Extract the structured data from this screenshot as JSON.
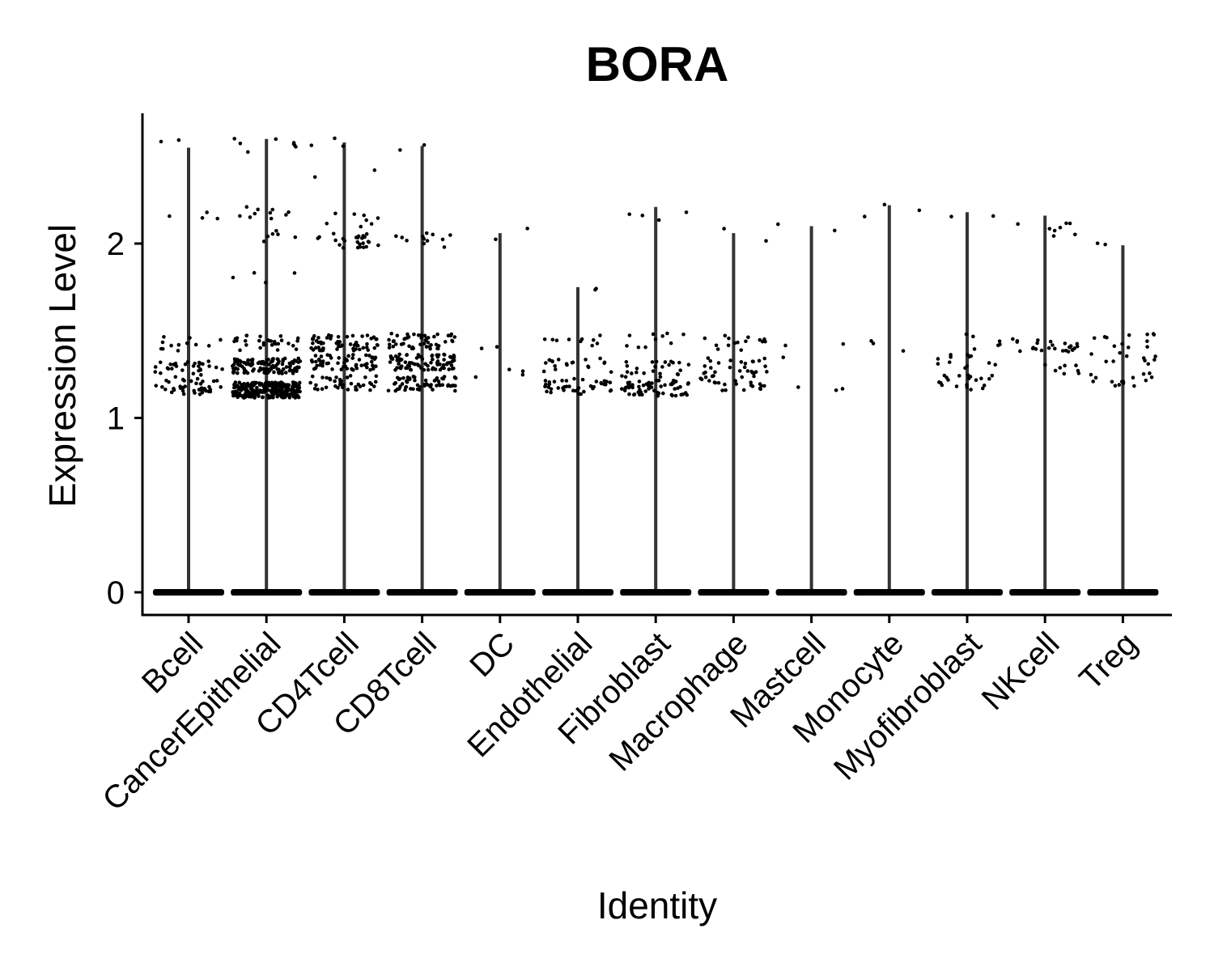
{
  "chart_data": {
    "type": "violin",
    "title": "BORA",
    "xlabel": "Identity",
    "ylabel": "Expression Level",
    "ylim": [
      -0.13,
      2.7
    ],
    "yticks": [
      0,
      1,
      2
    ],
    "categories": [
      "Bcell",
      "CancerEpithelial",
      "CD4Tcell",
      "CD8Tcell",
      "DC",
      "Endothelial",
      "Fibroblast",
      "Macrophage",
      "Mastcell",
      "Monocyte",
      "Myofibroblast",
      "NKcell",
      "Treg"
    ],
    "max_values": [
      2.55,
      2.6,
      2.58,
      2.56,
      2.06,
      1.75,
      2.21,
      2.06,
      2.1,
      2.22,
      2.18,
      2.16,
      1.99
    ],
    "point_groups": [
      {
        "category": "Bcell",
        "points": [
          [
            1.18,
            40
          ],
          [
            1.28,
            30
          ],
          [
            1.43,
            12
          ],
          [
            2.16,
            4
          ],
          [
            2.55,
            2
          ]
        ]
      },
      {
        "category": "CancerEpithelial",
        "points": [
          [
            1.16,
            250
          ],
          [
            1.3,
            120
          ],
          [
            1.43,
            30
          ],
          [
            1.8,
            4
          ],
          [
            2.05,
            6
          ],
          [
            2.17,
            10
          ],
          [
            2.57,
            8
          ]
        ]
      },
      {
        "category": "CD4Tcell",
        "points": [
          [
            1.2,
            40
          ],
          [
            1.32,
            60
          ],
          [
            1.43,
            60
          ],
          [
            2.02,
            25
          ],
          [
            2.14,
            8
          ],
          [
            2.4,
            2
          ],
          [
            2.58,
            3
          ]
        ]
      },
      {
        "category": "CD8Tcell",
        "points": [
          [
            1.2,
            60
          ],
          [
            1.32,
            80
          ],
          [
            1.44,
            50
          ],
          [
            2.02,
            12
          ],
          [
            2.56,
            2
          ]
        ]
      },
      {
        "category": "DC",
        "points": [
          [
            1.25,
            4
          ],
          [
            1.4,
            2
          ],
          [
            2.06,
            2
          ]
        ]
      },
      {
        "category": "Endothelial",
        "points": [
          [
            1.18,
            40
          ],
          [
            1.3,
            20
          ],
          [
            1.44,
            10
          ],
          [
            1.75,
            2
          ]
        ]
      },
      {
        "category": "Fibroblast",
        "points": [
          [
            1.17,
            60
          ],
          [
            1.28,
            25
          ],
          [
            1.44,
            10
          ],
          [
            2.15,
            4
          ]
        ]
      },
      {
        "category": "Macrophage",
        "points": [
          [
            1.2,
            25
          ],
          [
            1.3,
            25
          ],
          [
            1.43,
            15
          ],
          [
            2.06,
            2
          ]
        ]
      },
      {
        "category": "Mastcell",
        "points": [
          [
            1.2,
            3
          ],
          [
            1.38,
            3
          ],
          [
            2.09,
            2
          ]
        ]
      },
      {
        "category": "Monocyte",
        "points": [
          [
            1.4,
            3
          ],
          [
            2.19,
            3
          ]
        ]
      },
      {
        "category": "Myofibroblast",
        "points": [
          [
            1.2,
            20
          ],
          [
            1.32,
            12
          ],
          [
            1.44,
            6
          ],
          [
            2.18,
            2
          ]
        ]
      },
      {
        "category": "NKcell",
        "points": [
          [
            1.27,
            8
          ],
          [
            1.42,
            25
          ],
          [
            2.08,
            8
          ]
        ]
      },
      {
        "category": "Treg",
        "points": [
          [
            1.22,
            15
          ],
          [
            1.33,
            10
          ],
          [
            1.44,
            12
          ],
          [
            1.99,
            2
          ]
        ]
      }
    ],
    "colors": {
      "line": "#333333",
      "point": "#000000",
      "axis": "#000000"
    }
  }
}
